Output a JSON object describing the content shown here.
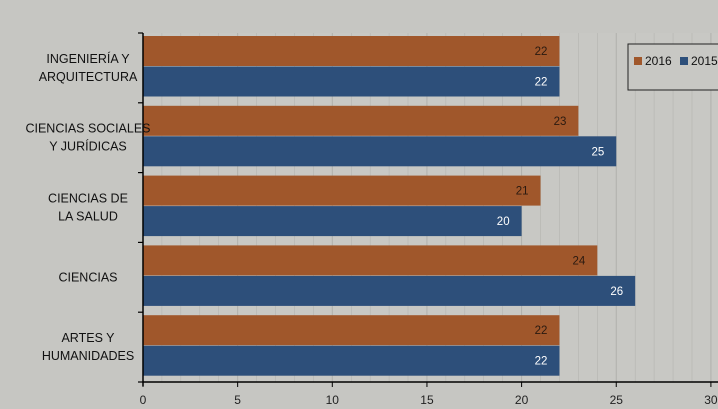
{
  "colors": {
    "series_2016": "#a0572b",
    "series_2015": "#2d4f7a",
    "background": "#c6c6c2",
    "plot_background": "#c8c8c4",
    "grid": "#b0b0ac",
    "axis": "#000000"
  },
  "chart_data": {
    "type": "bar",
    "orientation": "horizontal",
    "categories": [
      "INGENIERÍA Y\nARQUITECTURA",
      "CIENCIAS SOCIALES\nY JURÍDICAS",
      "CIENCIAS DE\nLA SALUD",
      "CIENCIAS",
      "ARTES Y\nHUMANIDADES"
    ],
    "series": [
      {
        "name": "2016",
        "values": [
          22,
          23,
          21,
          24,
          22
        ]
      },
      {
        "name": "2015",
        "values": [
          22,
          25,
          20,
          26,
          22
        ]
      }
    ],
    "xlim": [
      0,
      30
    ],
    "xticks": [
      0,
      5,
      10,
      15,
      20,
      25,
      30
    ],
    "title": "",
    "xlabel": "",
    "ylabel": "",
    "grid": true,
    "legend": {
      "position": "top-right",
      "entries": [
        "2016",
        "2015"
      ]
    },
    "data_labels": true
  }
}
